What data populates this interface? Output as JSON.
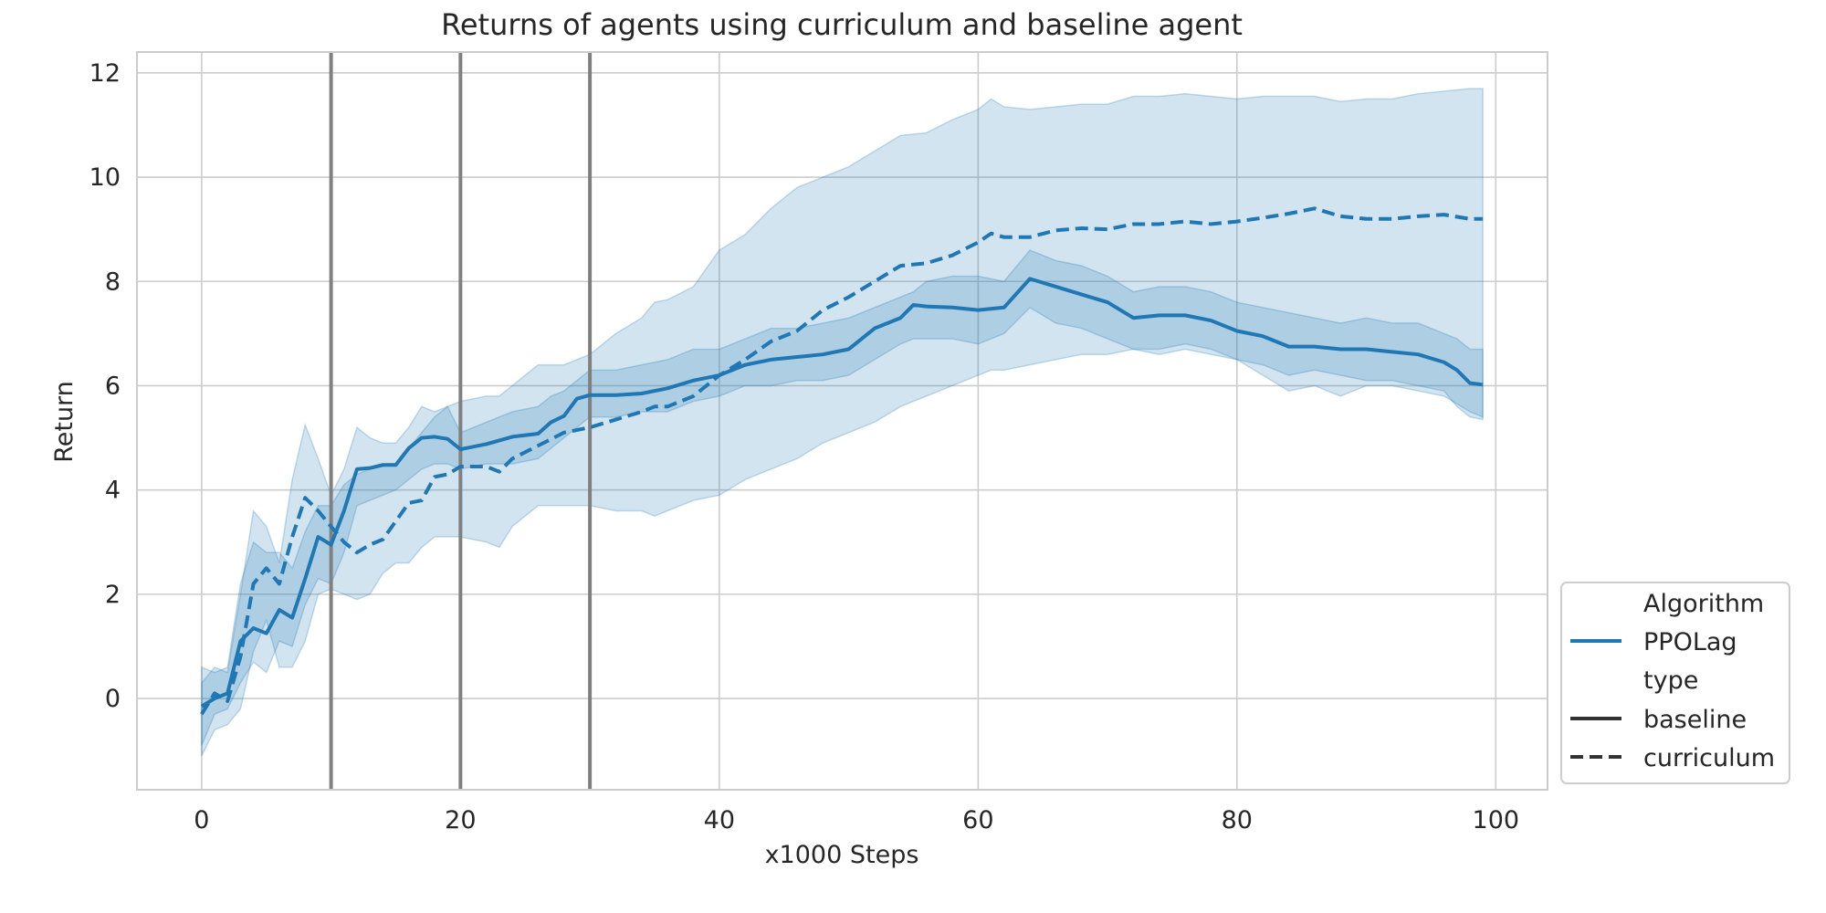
{
  "chart_data": {
    "type": "line",
    "title": "Returns of agents using curriculum and baseline agent",
    "xlabel": "x1000 Steps",
    "ylabel": "Return",
    "xlim": [
      -5,
      104
    ],
    "ylim": [
      -1.75,
      12.4
    ],
    "x_ticks": [
      0,
      20,
      40,
      60,
      80,
      100
    ],
    "y_ticks": [
      0,
      2,
      4,
      6,
      8,
      10,
      12
    ],
    "grid": true,
    "vertical_lines": [
      10,
      20,
      30
    ],
    "colors": {
      "series": "#1f77b4",
      "band": "#1f77b4",
      "vline": "#808080",
      "legend_line": "#333333"
    },
    "legend": {
      "placement": "lower-right-outside",
      "entries": [
        {
          "label": "Algorithm",
          "style": "header"
        },
        {
          "label": "PPOLag",
          "style": "solid-color"
        },
        {
          "label": "type",
          "style": "header"
        },
        {
          "label": "baseline",
          "style": "solid-dark"
        },
        {
          "label": "curriculum",
          "style": "dashed-dark"
        }
      ]
    },
    "series": [
      {
        "name": "baseline",
        "dash": "solid",
        "points": [
          [
            0,
            -0.15
          ],
          [
            1,
            0.0
          ],
          [
            2,
            0.1
          ],
          [
            3,
            1.1
          ],
          [
            4,
            1.35
          ],
          [
            5,
            1.25
          ],
          [
            6,
            1.7
          ],
          [
            7,
            1.55
          ],
          [
            8,
            2.3
          ],
          [
            9,
            3.1
          ],
          [
            10,
            2.95
          ],
          [
            11,
            3.6
          ],
          [
            12,
            4.4
          ],
          [
            13,
            4.42
          ],
          [
            14,
            4.48
          ],
          [
            15,
            4.48
          ],
          [
            16,
            4.8
          ],
          [
            17,
            5.0
          ],
          [
            18,
            5.02
          ],
          [
            19,
            4.98
          ],
          [
            20,
            4.78
          ],
          [
            22,
            4.88
          ],
          [
            24,
            5.02
          ],
          [
            26,
            5.08
          ],
          [
            27,
            5.3
          ],
          [
            28,
            5.42
          ],
          [
            29,
            5.75
          ],
          [
            30,
            5.82
          ],
          [
            32,
            5.82
          ],
          [
            34,
            5.85
          ],
          [
            36,
            5.95
          ],
          [
            38,
            6.1
          ],
          [
            40,
            6.2
          ],
          [
            42,
            6.4
          ],
          [
            44,
            6.5
          ],
          [
            46,
            6.55
          ],
          [
            48,
            6.6
          ],
          [
            50,
            6.7
          ],
          [
            52,
            7.1
          ],
          [
            54,
            7.3
          ],
          [
            55,
            7.55
          ],
          [
            56,
            7.52
          ],
          [
            58,
            7.5
          ],
          [
            60,
            7.45
          ],
          [
            62,
            7.5
          ],
          [
            64,
            8.05
          ],
          [
            66,
            7.9
          ],
          [
            68,
            7.75
          ],
          [
            70,
            7.6
          ],
          [
            72,
            7.3
          ],
          [
            74,
            7.35
          ],
          [
            76,
            7.35
          ],
          [
            78,
            7.25
          ],
          [
            80,
            7.05
          ],
          [
            82,
            6.95
          ],
          [
            84,
            6.75
          ],
          [
            86,
            6.75
          ],
          [
            88,
            6.7
          ],
          [
            90,
            6.7
          ],
          [
            92,
            6.65
          ],
          [
            94,
            6.6
          ],
          [
            96,
            6.45
          ],
          [
            97,
            6.3
          ],
          [
            98,
            6.05
          ],
          [
            99,
            6.02
          ]
        ],
        "band": [
          [
            0,
            -0.9,
            0.6
          ],
          [
            1,
            -0.3,
            0.5
          ],
          [
            2,
            -0.2,
            0.6
          ],
          [
            3,
            0.3,
            2.2
          ],
          [
            4,
            0.7,
            3.0
          ],
          [
            5,
            0.5,
            2.8
          ],
          [
            6,
            1.1,
            2.8
          ],
          [
            7,
            1.0,
            2.5
          ],
          [
            8,
            1.8,
            3.2
          ],
          [
            9,
            2.3,
            3.7
          ],
          [
            10,
            2.2,
            3.7
          ],
          [
            11,
            2.8,
            4.1
          ],
          [
            12,
            3.7,
            4.3
          ],
          [
            13,
            3.8,
            4.4
          ],
          [
            14,
            3.9,
            4.5
          ],
          [
            15,
            4.0,
            4.5
          ],
          [
            16,
            4.2,
            4.8
          ],
          [
            17,
            4.4,
            5.1
          ],
          [
            18,
            4.5,
            5.4
          ],
          [
            19,
            4.5,
            5.6
          ],
          [
            20,
            4.4,
            5.1
          ],
          [
            22,
            4.5,
            5.3
          ],
          [
            24,
            4.5,
            5.5
          ],
          [
            26,
            4.6,
            5.6
          ],
          [
            27,
            4.8,
            5.8
          ],
          [
            28,
            5.0,
            5.9
          ],
          [
            29,
            5.2,
            6.1
          ],
          [
            30,
            5.4,
            6.3
          ],
          [
            32,
            5.4,
            6.3
          ],
          [
            34,
            5.5,
            6.4
          ],
          [
            36,
            5.5,
            6.5
          ],
          [
            38,
            5.7,
            6.7
          ],
          [
            40,
            5.8,
            6.7
          ],
          [
            42,
            6.0,
            6.9
          ],
          [
            44,
            6.0,
            7.1
          ],
          [
            46,
            6.1,
            7.1
          ],
          [
            48,
            6.1,
            7.2
          ],
          [
            50,
            6.2,
            7.3
          ],
          [
            52,
            6.5,
            7.5
          ],
          [
            54,
            6.8,
            7.7
          ],
          [
            55,
            6.9,
            7.8
          ],
          [
            56,
            6.9,
            8.0
          ],
          [
            58,
            6.9,
            8.1
          ],
          [
            60,
            6.8,
            8.1
          ],
          [
            62,
            7.0,
            8.0
          ],
          [
            64,
            7.5,
            8.6
          ],
          [
            66,
            7.2,
            8.4
          ],
          [
            68,
            7.1,
            8.3
          ],
          [
            70,
            6.9,
            8.1
          ],
          [
            72,
            6.7,
            7.8
          ],
          [
            74,
            6.7,
            7.9
          ],
          [
            76,
            6.8,
            7.9
          ],
          [
            78,
            6.7,
            7.8
          ],
          [
            80,
            6.5,
            7.6
          ],
          [
            82,
            6.4,
            7.5
          ],
          [
            84,
            6.2,
            7.4
          ],
          [
            86,
            6.3,
            7.3
          ],
          [
            88,
            6.2,
            7.2
          ],
          [
            90,
            6.1,
            7.3
          ],
          [
            92,
            6.1,
            7.2
          ],
          [
            94,
            6.0,
            7.2
          ],
          [
            96,
            5.9,
            7.0
          ],
          [
            97,
            5.6,
            6.9
          ],
          [
            98,
            5.4,
            6.7
          ],
          [
            99,
            5.35,
            6.7
          ]
        ]
      },
      {
        "name": "curriculum",
        "dash": "dashed",
        "points": [
          [
            0,
            -0.3
          ],
          [
            1,
            0.1
          ],
          [
            2,
            -0.05
          ],
          [
            3,
            0.8
          ],
          [
            4,
            2.2
          ],
          [
            5,
            2.5
          ],
          [
            6,
            2.2
          ],
          [
            7,
            3.1
          ],
          [
            8,
            3.85
          ],
          [
            9,
            3.6
          ],
          [
            10,
            3.3
          ],
          [
            11,
            3.0
          ],
          [
            12,
            2.8
          ],
          [
            13,
            2.95
          ],
          [
            14,
            3.05
          ],
          [
            15,
            3.4
          ],
          [
            16,
            3.75
          ],
          [
            17,
            3.8
          ],
          [
            18,
            4.25
          ],
          [
            19,
            4.3
          ],
          [
            20,
            4.45
          ],
          [
            22,
            4.45
          ],
          [
            23,
            4.35
          ],
          [
            24,
            4.6
          ],
          [
            26,
            4.85
          ],
          [
            28,
            5.1
          ],
          [
            30,
            5.2
          ],
          [
            32,
            5.35
          ],
          [
            34,
            5.5
          ],
          [
            35,
            5.6
          ],
          [
            36,
            5.6
          ],
          [
            38,
            5.8
          ],
          [
            40,
            6.2
          ],
          [
            42,
            6.5
          ],
          [
            44,
            6.85
          ],
          [
            46,
            7.05
          ],
          [
            48,
            7.45
          ],
          [
            50,
            7.7
          ],
          [
            52,
            8.0
          ],
          [
            54,
            8.3
          ],
          [
            56,
            8.35
          ],
          [
            58,
            8.5
          ],
          [
            60,
            8.75
          ],
          [
            61,
            8.92
          ],
          [
            62,
            8.85
          ],
          [
            64,
            8.85
          ],
          [
            66,
            8.98
          ],
          [
            68,
            9.02
          ],
          [
            70,
            9.0
          ],
          [
            72,
            9.1
          ],
          [
            74,
            9.1
          ],
          [
            76,
            9.15
          ],
          [
            78,
            9.1
          ],
          [
            80,
            9.15
          ],
          [
            82,
            9.22
          ],
          [
            84,
            9.3
          ],
          [
            86,
            9.4
          ],
          [
            88,
            9.25
          ],
          [
            90,
            9.2
          ],
          [
            92,
            9.2
          ],
          [
            94,
            9.25
          ],
          [
            96,
            9.28
          ],
          [
            98,
            9.2
          ],
          [
            99,
            9.2
          ]
        ],
        "band": [
          [
            0,
            -1.1,
            0.3
          ],
          [
            1,
            -0.6,
            0.6
          ],
          [
            2,
            -0.5,
            0.5
          ],
          [
            3,
            -0.2,
            2.0
          ],
          [
            4,
            0.9,
            3.6
          ],
          [
            5,
            1.5,
            3.3
          ],
          [
            6,
            0.6,
            2.6
          ],
          [
            7,
            0.6,
            4.2
          ],
          [
            8,
            1.1,
            5.25
          ],
          [
            9,
            2.0,
            4.6
          ],
          [
            10,
            2.1,
            3.9
          ],
          [
            11,
            2.0,
            4.4
          ],
          [
            12,
            1.9,
            5.2
          ],
          [
            13,
            2.0,
            5.0
          ],
          [
            14,
            2.4,
            4.9
          ],
          [
            15,
            2.6,
            4.9
          ],
          [
            16,
            2.6,
            5.2
          ],
          [
            17,
            2.9,
            5.6
          ],
          [
            18,
            3.1,
            5.5
          ],
          [
            19,
            3.1,
            5.6
          ],
          [
            20,
            3.1,
            5.7
          ],
          [
            22,
            3.0,
            5.8
          ],
          [
            23,
            2.9,
            5.8
          ],
          [
            24,
            3.3,
            6.0
          ],
          [
            26,
            3.7,
            6.4
          ],
          [
            28,
            3.7,
            6.4
          ],
          [
            30,
            3.7,
            6.6
          ],
          [
            32,
            3.6,
            7.0
          ],
          [
            34,
            3.6,
            7.3
          ],
          [
            35,
            3.5,
            7.6
          ],
          [
            36,
            3.6,
            7.65
          ],
          [
            38,
            3.8,
            7.9
          ],
          [
            40,
            3.9,
            8.6
          ],
          [
            42,
            4.2,
            8.9
          ],
          [
            44,
            4.4,
            9.4
          ],
          [
            46,
            4.6,
            9.8
          ],
          [
            48,
            4.9,
            10.0
          ],
          [
            50,
            5.1,
            10.2
          ],
          [
            52,
            5.3,
            10.5
          ],
          [
            54,
            5.6,
            10.8
          ],
          [
            56,
            5.8,
            10.85
          ],
          [
            58,
            6.0,
            11.1
          ],
          [
            60,
            6.2,
            11.3
          ],
          [
            61,
            6.3,
            11.5
          ],
          [
            62,
            6.3,
            11.35
          ],
          [
            64,
            6.4,
            11.3
          ],
          [
            66,
            6.5,
            11.35
          ],
          [
            68,
            6.6,
            11.4
          ],
          [
            70,
            6.6,
            11.4
          ],
          [
            72,
            6.7,
            11.55
          ],
          [
            74,
            6.6,
            11.55
          ],
          [
            76,
            6.7,
            11.6
          ],
          [
            78,
            6.6,
            11.55
          ],
          [
            80,
            6.5,
            11.5
          ],
          [
            82,
            6.2,
            11.55
          ],
          [
            84,
            5.9,
            11.55
          ],
          [
            86,
            6.0,
            11.55
          ],
          [
            88,
            5.8,
            11.45
          ],
          [
            90,
            6.0,
            11.5
          ],
          [
            92,
            6.0,
            11.5
          ],
          [
            94,
            5.9,
            11.6
          ],
          [
            96,
            5.8,
            11.65
          ],
          [
            98,
            5.5,
            11.7
          ],
          [
            99,
            5.4,
            11.7
          ]
        ]
      }
    ]
  }
}
